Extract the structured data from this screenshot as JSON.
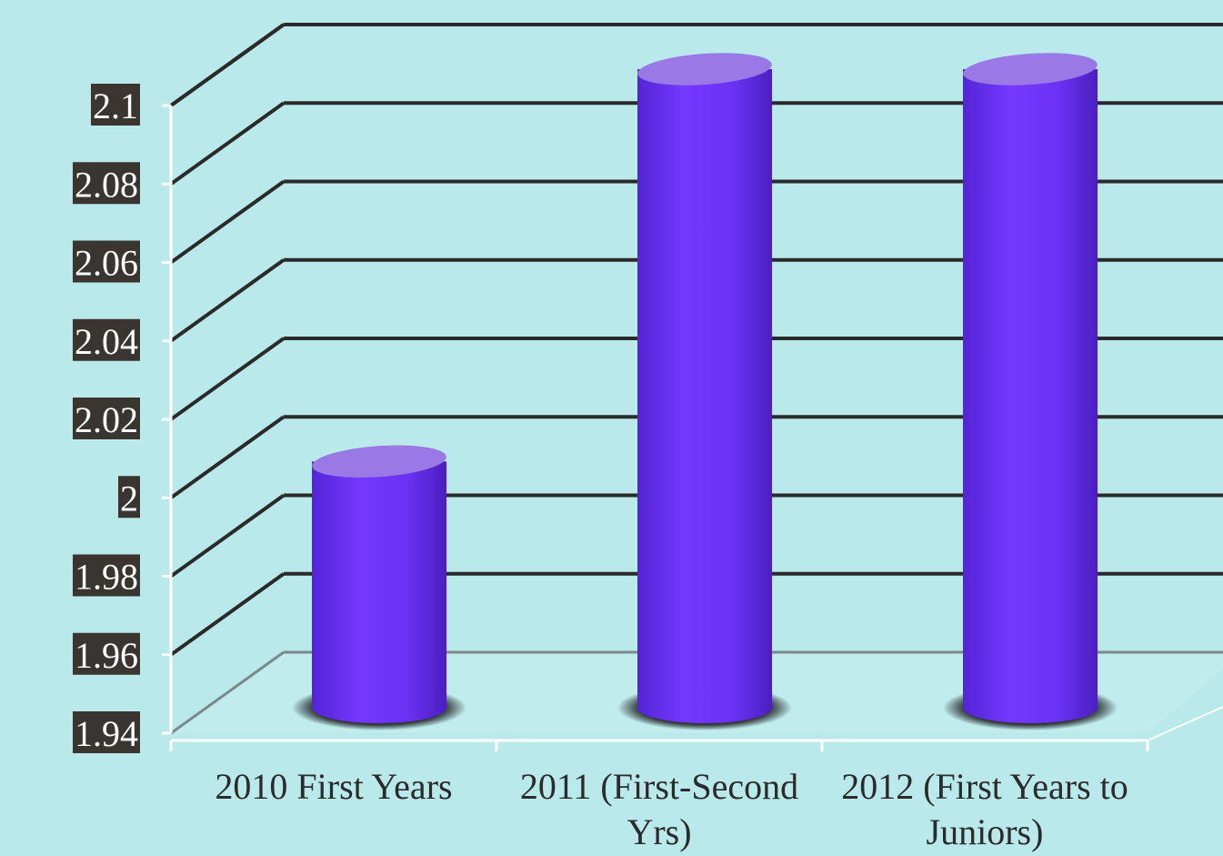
{
  "chart_data": {
    "type": "bar",
    "title": "",
    "xlabel": "",
    "ylabel": "",
    "categories": [
      "2010 First Years",
      "2011 (First-Second Yrs)",
      "2012 (First Years to Juniors)"
    ],
    "category_lines": [
      [
        "2010 First Years"
      ],
      [
        "2011 (First-Second",
        "Yrs)"
      ],
      [
        "2012 (First Years to",
        "Juniors)"
      ]
    ],
    "values": [
      2.0,
      2.1,
      2.1
    ],
    "ylim": [
      1.94,
      2.1
    ],
    "yticks": [
      "2.1",
      "2.08",
      "2.06",
      "2.04",
      "2.02",
      "2",
      "1.98",
      "1.96",
      "1.94"
    ],
    "grid": true,
    "legend": "none",
    "style": "3d-cylinder",
    "colors": {
      "background": "#b9e9ea",
      "bar": "#7035f5",
      "bar_top": "#9a78e6",
      "gridline": "#2a2a2a",
      "tick_label_bg": "#3a3530",
      "tick_label_text": "#ffffff",
      "axis": "#ffffff"
    }
  }
}
